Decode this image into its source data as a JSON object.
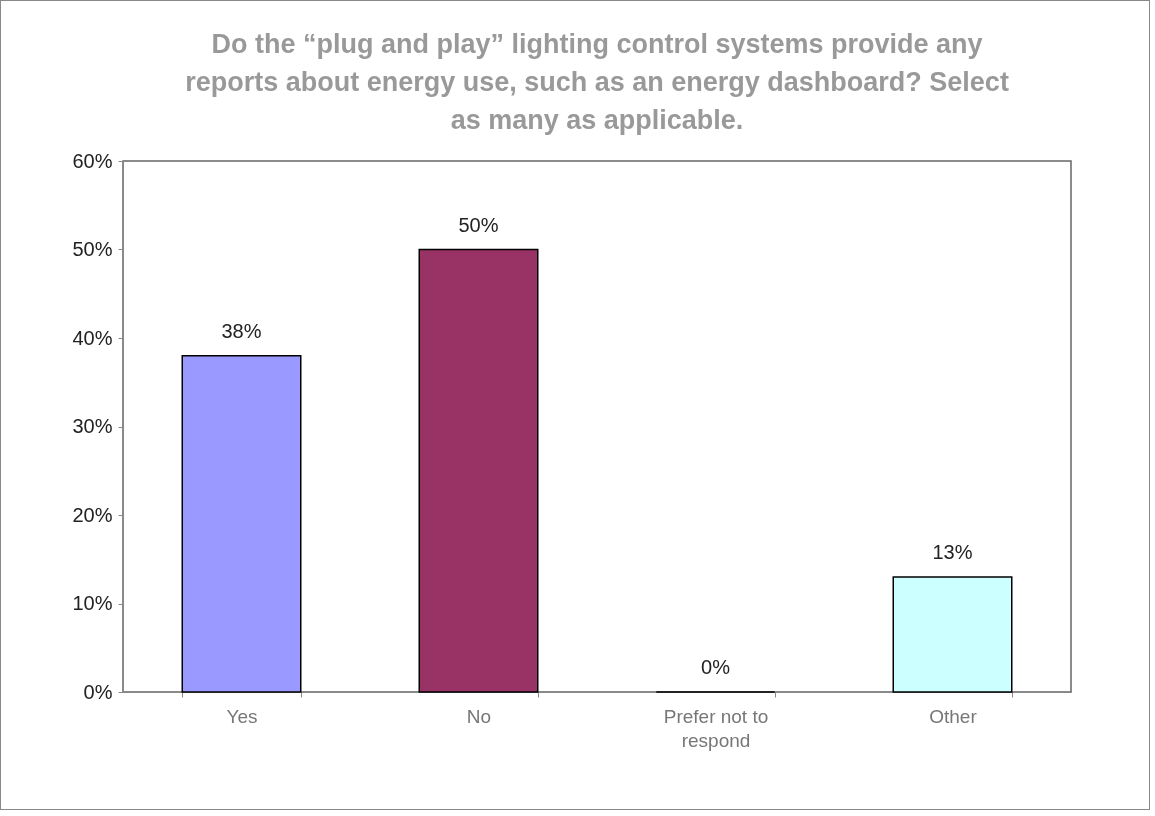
{
  "chart_data": {
    "type": "bar",
    "title": "Do the “plug and play” lighting control systems provide any reports about energy use, such as an energy dashboard? Select as many as applicable.",
    "categories": [
      "Yes",
      "No",
      "Prefer not to respond",
      "Other"
    ],
    "values": [
      38,
      50,
      0,
      13
    ],
    "colors": [
      "#9999ff",
      "#993366",
      "#000000",
      "#ccffff"
    ],
    "ylim": [
      0,
      60
    ],
    "yticks": [
      {
        "value": 0,
        "label": "0%"
      },
      {
        "value": 10,
        "label": "10%"
      },
      {
        "value": 20,
        "label": "20%"
      },
      {
        "value": 30,
        "label": "30%"
      },
      {
        "value": 40,
        "label": "40%"
      },
      {
        "value": 50,
        "label": "50%"
      },
      {
        "value": 60,
        "label": "60%"
      }
    ],
    "data_labels": true,
    "value_labels": [
      "38%",
      "50%",
      "0%",
      "13%"
    ],
    "grid": false
  }
}
